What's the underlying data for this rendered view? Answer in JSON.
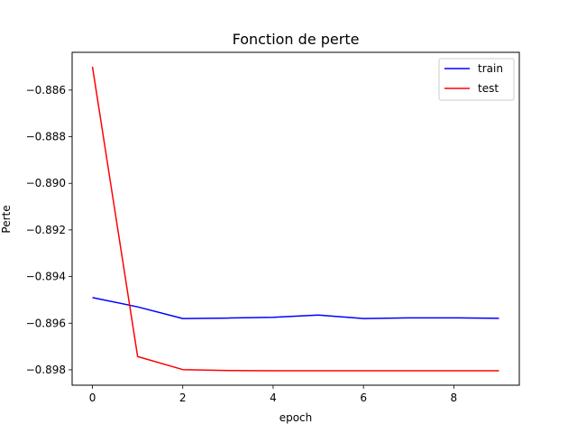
{
  "chart_data": {
    "type": "line",
    "title": "Fonction de perte",
    "xlabel": "epoch",
    "ylabel": "Perte",
    "x": [
      0,
      1,
      2,
      3,
      4,
      5,
      6,
      7,
      8,
      9
    ],
    "series": [
      {
        "name": "train",
        "color": "#0000ff",
        "values": [
          -0.8949,
          -0.8953,
          -0.8958,
          -0.89578,
          -0.89575,
          -0.89565,
          -0.8958,
          -0.89577,
          -0.89577,
          -0.89579
        ]
      },
      {
        "name": "test",
        "color": "#ff0000",
        "values": [
          -0.885,
          -0.89743,
          -0.89799,
          -0.89803,
          -0.89804,
          -0.89804,
          -0.89804,
          -0.89804,
          -0.89804,
          -0.89804
        ]
      }
    ],
    "xlim": [
      -0.45,
      9.45
    ],
    "ylim": [
      -0.89866,
      -0.88438
    ],
    "xticks": [
      0,
      2,
      4,
      6,
      8
    ],
    "xtick_labels": [
      "0",
      "2",
      "4",
      "6",
      "8"
    ],
    "yticks": [
      -0.886,
      -0.888,
      -0.89,
      -0.892,
      -0.894,
      -0.896,
      -0.898
    ],
    "ytick_labels": [
      "−0.886",
      "−0.888",
      "−0.890",
      "−0.892",
      "−0.894",
      "−0.896",
      "−0.898"
    ],
    "grid": false,
    "legend_position": "top-right"
  }
}
